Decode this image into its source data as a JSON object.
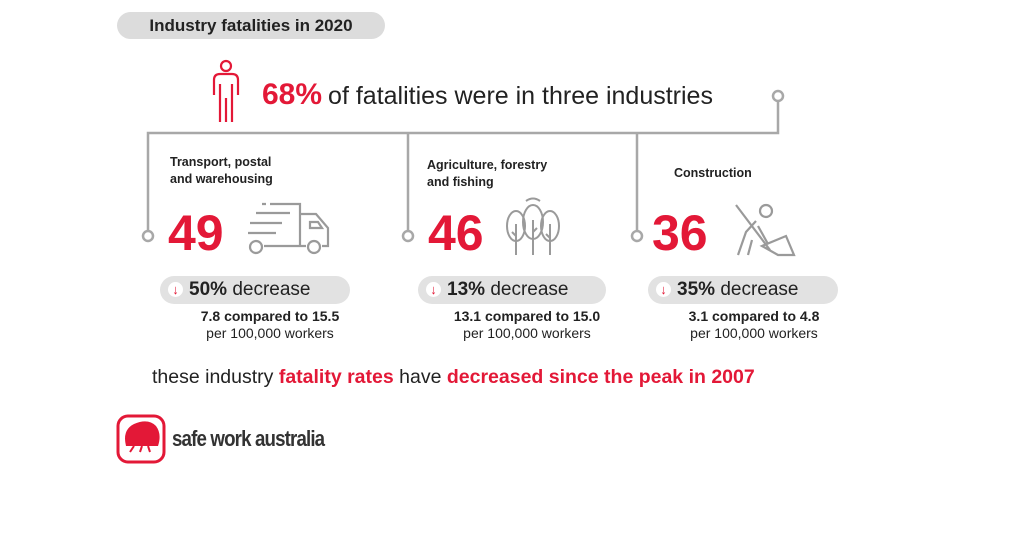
{
  "title": "Industry fatalities in 2020",
  "headline": {
    "percent": "68%",
    "text": "of fatalities were in three industries"
  },
  "industries": [
    {
      "name_line1": "Transport, postal",
      "name_line2": "and warehousing",
      "fatalities": "49",
      "icon": "truck-icon",
      "decrease_pct": "50%",
      "decrease_word": "decrease",
      "comparison": "7.8 compared to 15.5",
      "unit": "per 100,000 workers"
    },
    {
      "name_line1": "Agriculture, forestry",
      "name_line2": "and fishing",
      "fatalities": "46",
      "icon": "trees-icon",
      "decrease_pct": "13%",
      "decrease_word": "decrease",
      "comparison": "13.1 compared to 15.0",
      "unit": "per 100,000 workers"
    },
    {
      "name_line1": "Construction",
      "name_line2": "",
      "fatalities": "36",
      "icon": "construction-worker-icon",
      "decrease_pct": "35%",
      "decrease_word": "decrease",
      "comparison": "3.1 compared to 4.8",
      "unit": "per 100,000 workers"
    }
  ],
  "footer": {
    "part1": "these industry",
    "part2": "fatality rates",
    "part3": "have",
    "part4": "decreased since the peak in 2007"
  },
  "brand": "safe work australia",
  "colors": {
    "accent": "#e31837",
    "line": "#a8a8a8",
    "pill": "#e2e2e2"
  }
}
